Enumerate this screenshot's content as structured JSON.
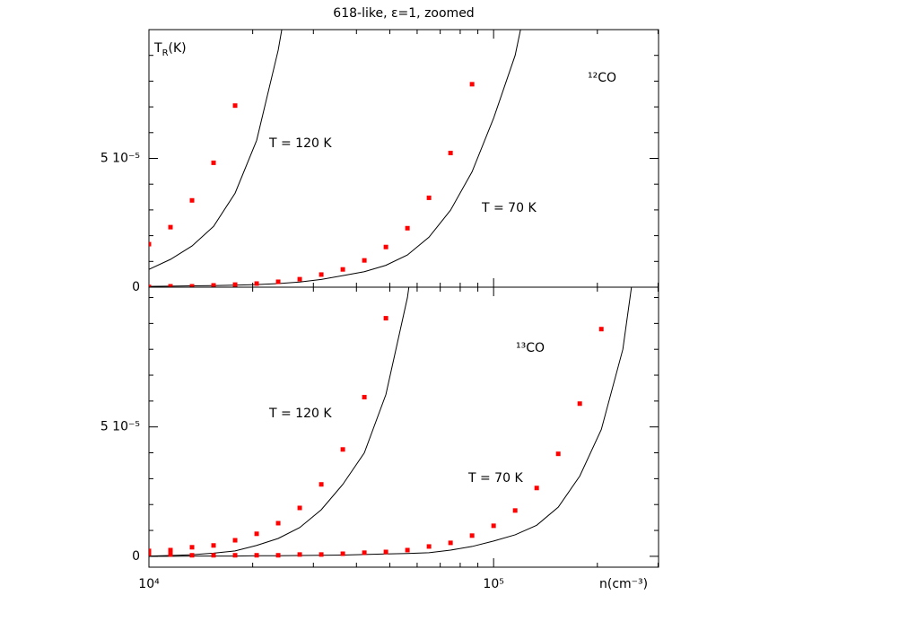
{
  "chart_data": [
    {
      "type": "line",
      "title": "618-like, ε=1, zoomed",
      "ylabel": [
        "T",
        "R",
        "(K)"
      ],
      "annotations": [
        "T = 120 K",
        "T = 70 K",
        "¹²CO"
      ],
      "x": [
        10000,
        11548,
        13335,
        15399,
        17783,
        20535,
        23714,
        27384,
        31623,
        36517,
        42170,
        48697,
        56234,
        64938,
        74989,
        86596,
        100000,
        115478,
        133352,
        153993,
        177828,
        205353,
        237137,
        273842
      ],
      "xlim": [
        10000,
        301000
      ],
      "log_x": true,
      "xticks": [
        {
          "value": 10000,
          "label": "10⁴"
        },
        {
          "value": 100000,
          "label": "10⁵"
        }
      ],
      "xminorticks": [
        20000,
        30000,
        40000,
        50000,
        60000,
        70000,
        80000,
        90000,
        200000,
        300000
      ],
      "ylim": [
        0,
        0.0001
      ],
      "yticks": [
        0,
        {
          "value": 5e-05,
          "label": "5 10⁻⁵"
        }
      ],
      "yminorticks": [
        1e-05,
        2e-05,
        3e-05,
        4e-05,
        6e-05,
        7e-05,
        8e-05,
        9e-05
      ],
      "series": [
        {
          "mode": "line",
          "color": "#000000",
          "values": [
            6.9e-06,
            1.08e-05,
            1.6e-05,
            2.36e-05,
            3.65e-05,
            5.7e-05,
            9.2e-05,
            0.00014,
            null,
            null,
            null,
            null,
            null,
            null,
            null,
            null,
            null,
            null,
            null,
            null,
            null,
            null,
            null,
            null
          ]
        },
        {
          "mode": "line",
          "color": "#000000",
          "values": [
            3e-07,
            4e-07,
            5e-07,
            6e-07,
            8e-07,
            1e-06,
            1.4e-06,
            2e-06,
            3e-06,
            4.5e-06,
            6e-06,
            8.5e-06,
            1.25e-05,
            1.94e-05,
            2.99e-05,
            4.48e-05,
            6.56e-05,
            9e-05,
            0.00013,
            null,
            null,
            null,
            null,
            null
          ]
        },
        {
          "mode": "markers",
          "color": "#ff0000",
          "values": [
            1.67e-05,
            2.33e-05,
            3.37e-05,
            4.83e-05,
            7.05e-05,
            null,
            null,
            null,
            null,
            null,
            null,
            null,
            null,
            null,
            null,
            null,
            null,
            null,
            null,
            null,
            null,
            null,
            null,
            null
          ]
        },
        {
          "mode": "markers",
          "color": "#ff0000",
          "values": [
            1e-07,
            3.5e-07,
            3.5e-07,
            7e-07,
            1e-06,
            1.4e-06,
            2.1e-06,
            3.1e-06,
            4.9e-06,
            6.9e-06,
            1.04e-05,
            1.56e-05,
            2.29e-05,
            3.47e-05,
            5.21e-05,
            7.88e-05,
            null,
            null,
            null,
            null,
            null,
            null,
            null,
            null
          ]
        }
      ]
    },
    {
      "type": "line",
      "xlabel": "n(cm⁻³)",
      "annotations": [
        "T = 120 K",
        "T = 70 K",
        "¹³CO"
      ],
      "x": [
        10000,
        11548,
        13335,
        15399,
        17783,
        20535,
        23714,
        27384,
        31623,
        36517,
        42170,
        48697,
        56234,
        64938,
        74989,
        86596,
        100000,
        115478,
        133352,
        153993,
        177828,
        205353,
        237137,
        273842
      ],
      "xlim": [
        10000,
        301000
      ],
      "log_x": true,
      "xticks": [
        {
          "value": 10000,
          "label": "10⁴"
        },
        {
          "value": 100000,
          "label": "10⁵"
        }
      ],
      "xminorticks": [
        20000,
        30000,
        40000,
        50000,
        60000,
        70000,
        80000,
        90000,
        200000,
        300000
      ],
      "ylim": [
        -4.2e-06,
        0.000104
      ],
      "yticks": [
        0,
        {
          "value": 5e-05,
          "label": "5 10⁻⁵"
        }
      ],
      "yminorticks": [
        1e-05,
        2e-05,
        3e-05,
        4e-05,
        6e-05,
        7e-05,
        8e-05,
        9e-05,
        0.0001
      ],
      "series": [
        {
          "mode": "line",
          "color": "#000000",
          "values": [
            1e-07,
            3e-07,
            6e-07,
            1.2e-06,
            2.1e-06,
            4.2e-06,
            6.9e-06,
            1.11e-05,
            1.8e-05,
            2.78e-05,
            4e-05,
            6.25e-05,
            0.0001,
            0.00016,
            null,
            null,
            null,
            null,
            null,
            null,
            null,
            null,
            null,
            null
          ]
        },
        {
          "mode": "line",
          "color": "#000000",
          "values": [
            0,
            0,
            1e-07,
            1e-07,
            1e-07,
            2e-07,
            2e-07,
            3e-07,
            4e-07,
            5e-07,
            7e-07,
            9e-07,
            1.1e-06,
            1.4e-06,
            2.4e-06,
            3.8e-06,
            5.9e-06,
            8.3e-06,
            1.2e-05,
            1.9e-05,
            3.1e-05,
            4.9e-05,
            8e-05,
            0.00014
          ]
        },
        {
          "mode": "markers",
          "color": "#ff0000",
          "values": [
            2.1e-06,
            2.4e-06,
            3.5e-06,
            4.2e-06,
            6.2e-06,
            8.7e-06,
            1.28e-05,
            1.87e-05,
            2.78e-05,
            4.13e-05,
            6.15e-05,
            9.2e-05,
            null,
            null,
            null,
            null,
            null,
            null,
            null,
            null,
            null,
            null,
            null,
            null
          ]
        },
        {
          "mode": "markers",
          "color": "#ff0000",
          "values": [
            1e-06,
            7e-07,
            4e-07,
            4e-07,
            4e-07,
            4e-07,
            4e-07,
            7e-07,
            7e-07,
            1e-06,
            1.4e-06,
            1.7e-06,
            2.4e-06,
            3.8e-06,
            5.2e-06,
            8e-06,
            1.18e-05,
            1.77e-05,
            2.64e-05,
            3.96e-05,
            5.9e-05,
            8.78e-05,
            null,
            null
          ]
        }
      ]
    }
  ]
}
